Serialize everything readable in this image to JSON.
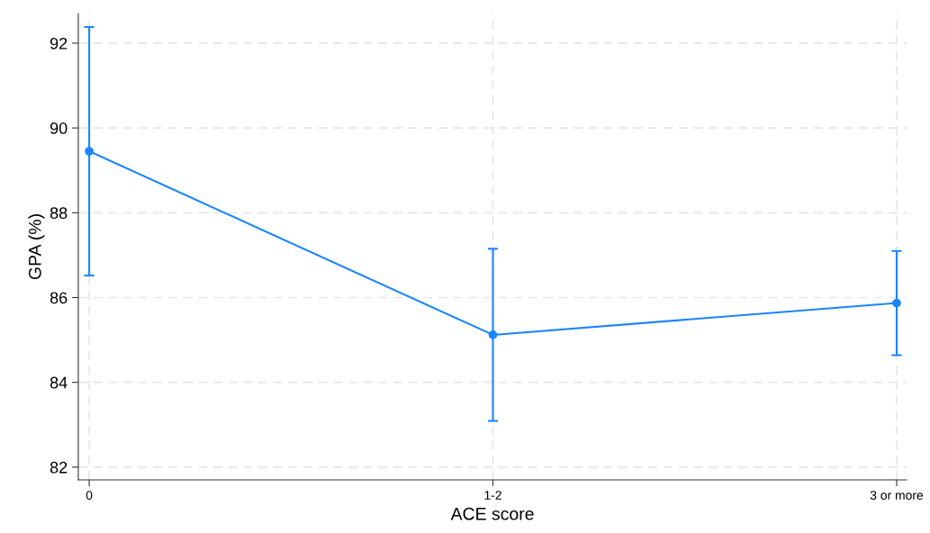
{
  "chart_data": {
    "type": "line",
    "xlabel": "ACE score",
    "ylabel": "GPA (%)",
    "categories": [
      "0",
      "1-2",
      "3 or more"
    ],
    "series": [
      {
        "color": "#1a85ff",
        "values": [
          89.45,
          85.12,
          85.87
        ],
        "errors": [
          2.93,
          2.03,
          1.23
        ]
      }
    ],
    "ylim": [
      81.7,
      92.7
    ],
    "yticks": [
      82,
      84,
      86,
      88,
      90,
      92
    ],
    "grid": true,
    "marker": "circle",
    "line_style": "solid"
  }
}
